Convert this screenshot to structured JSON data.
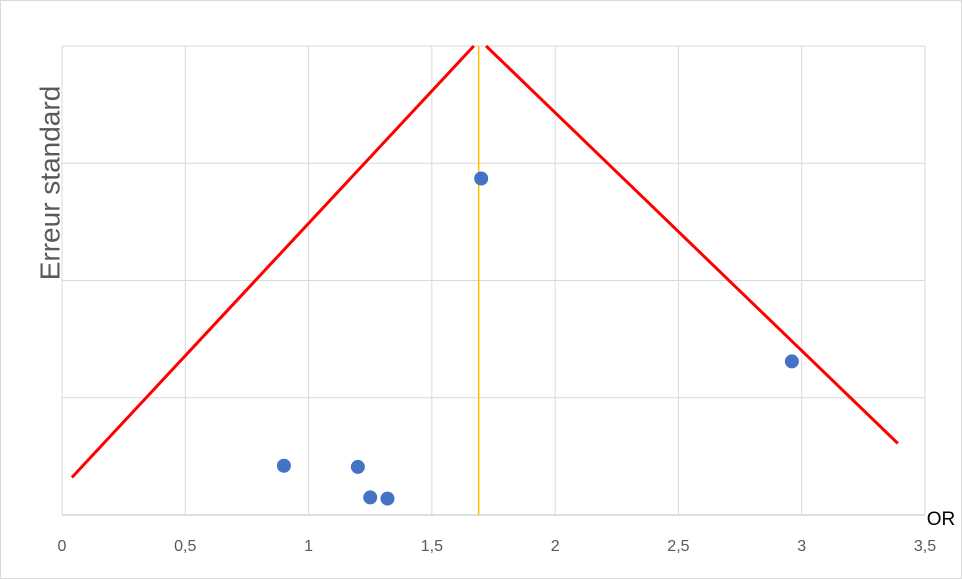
{
  "chart_data": {
    "type": "scatter",
    "title": "",
    "xlabel": "OR",
    "ylabel": "Erreur standard",
    "xlim": [
      0,
      3.5
    ],
    "ylim": [
      0,
      4
    ],
    "x_ticks": [
      0,
      0.5,
      1,
      1.5,
      2,
      2.5,
      3,
      3.5
    ],
    "x_tick_labels": [
      "0",
      "0,5",
      "1",
      "1,5",
      "2",
      "2,5",
      "3",
      "3,5"
    ],
    "y_gridlines": [
      0,
      1,
      2,
      3,
      4
    ],
    "grid": true,
    "legend": "none",
    "points": [
      {
        "x": 0.9,
        "y": 0.42
      },
      {
        "x": 1.2,
        "y": 0.41
      },
      {
        "x": 1.25,
        "y": 0.15
      },
      {
        "x": 1.32,
        "y": 0.14
      },
      {
        "x": 1.7,
        "y": 2.87
      },
      {
        "x": 2.96,
        "y": 1.31
      }
    ],
    "funnel_left": [
      [
        0.04,
        0.32
      ],
      [
        1.67,
        4.0
      ]
    ],
    "funnel_right": [
      [
        1.72,
        4.0
      ],
      [
        3.39,
        0.61
      ]
    ],
    "center_line_x": 1.69,
    "colors": {
      "points": "#4472c4",
      "funnel": "#ff0000",
      "center_line": "#ffc000",
      "grid": "#d9d9d9",
      "tick_text": "#595959"
    }
  }
}
